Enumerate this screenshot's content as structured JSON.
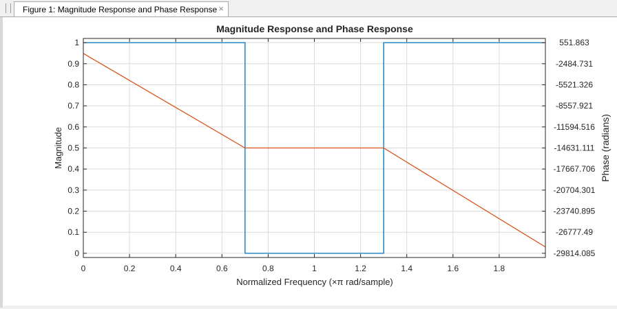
{
  "window": {
    "tab_title": "Figure 1: Magnitude Response and Phase Response",
    "close_glyph": "×"
  },
  "chart_data": {
    "type": "line",
    "title": "Magnitude Response and Phase Response",
    "xlabel": "Normalized Frequency (×π rad/sample)",
    "ylabel_left": "Magnitude",
    "ylabel_right": "Phase (radians)",
    "xlim": [
      0,
      2
    ],
    "ylim_left": [
      -0.02,
      1.02
    ],
    "ylim_right": [
      -30421.4,
      1159.1
    ],
    "x_ticks": [
      0,
      0.2,
      0.4,
      0.6,
      0.8,
      1,
      1.2,
      1.4,
      1.6,
      1.8
    ],
    "x_tick_labels": [
      "0",
      "0.2",
      "0.4",
      "0.6",
      "0.8",
      "1",
      "1.2",
      "1.4",
      "1.6",
      "1.8"
    ],
    "y_left_ticks": [
      0,
      0.1,
      0.2,
      0.3,
      0.4,
      0.5,
      0.6,
      0.7,
      0.8,
      0.9,
      1
    ],
    "y_left_tick_labels": [
      "0",
      "0.1",
      "0.2",
      "0.3",
      "0.4",
      "0.5",
      "0.6",
      "0.7",
      "0.8",
      "0.9",
      "1"
    ],
    "y_right_ticks": [
      551.863,
      -2484.731,
      -5521.326,
      -8557.921,
      -11594.516,
      -14631.111,
      -17667.706,
      -20704.301,
      -23740.895,
      -26777.49,
      -29814.085
    ],
    "y_right_tick_labels": [
      "551.863",
      "-2484.731",
      "-5521.326",
      "-8557.921",
      "-11594.516",
      "-14631.111",
      "-17667.706",
      "-20704.301",
      "-23740.895",
      "-26777.49",
      "-29814.085"
    ],
    "grid": true,
    "series": [
      {
        "axis": "left",
        "color": "#0072bd",
        "x": [
          0,
          0.7,
          0.7,
          1.3,
          1.3,
          2.0
        ],
        "y": [
          1,
          1,
          0,
          0,
          1,
          1
        ]
      },
      {
        "axis": "right",
        "color": "#d95319",
        "x": [
          0,
          0.7,
          1.3,
          2.0
        ],
        "y": [
          -1000,
          -14631.111,
          -14631.111,
          -28900
        ]
      }
    ]
  }
}
